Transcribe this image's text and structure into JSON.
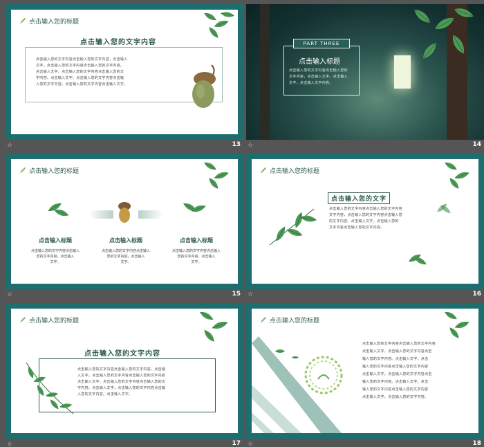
{
  "slides": [
    {
      "number": "13",
      "header": "点击输入您的标题",
      "title": "点击输入您的文字内容",
      "lines": [
        "点击输入您的文字内容点击输入您的文字内容，点击输入",
        "文字。点击输入您的文字内容点击输入您的文字内容。",
        "点击输入文字。点击输入您的文字内容点击输入您的文",
        "字内容。点击输入文字。点击输入您的文字内容点击输",
        "入您的文字内容。点击输入您的文字内容点击输入文字。"
      ]
    },
    {
      "number": "14",
      "part": "PART THREE",
      "title": "点击输入标题",
      "lines": [
        "点击输入您的文字内容点击输入您的",
        "文字内容，点击输入文字。点击输入",
        "文字。点击输入文字内容。"
      ]
    },
    {
      "number": "15",
      "header": "点击输入您的标题",
      "columns": [
        {
          "title": "点击输入标题",
          "lines": [
            "点击输入您的文字内容点击输入",
            "您的文字内容，点击输入",
            "文字。"
          ]
        },
        {
          "title": "点击输入标题",
          "lines": [
            "点击输入您的文字内容点击输入",
            "您的文字内容，点击输入",
            "文字。"
          ]
        },
        {
          "title": "点击输入标题",
          "lines": [
            "点击输入您的文字内容点击输入",
            "您的文字内容，点击输入",
            "文字。"
          ]
        }
      ]
    },
    {
      "number": "16",
      "header": "点击输入您的标题",
      "title": "点击输入您的文字",
      "lines": [
        "点击输入您的文字内容点击输入您的文字内容",
        "文字内容，点击输入您的文字内容点击输入您",
        "的文字内容。点击输入文字。点击输入您的",
        "文字内容点击输入您的文字内容。"
      ]
    },
    {
      "number": "17",
      "header": "点击输入您的标题",
      "title": "点击输入您的文字内容",
      "lines": [
        "点击输入您的文字内容点击输入您的文字内容，点击输",
        "入文字。点击输入您的文字内容点击输入您的文字内容",
        "点击输入文字。点击输入您的文字内容点击输入您的文",
        "字内容。点击输入文字。点击输入您的文字内容点击输",
        "入您的文字内容。点击输入文字。"
      ]
    },
    {
      "number": "18",
      "header": "点击输入您的标题",
      "lines": [
        "点击输入您的文字内容点击输入您的文字内容",
        "点击输入文字。点击输入您的文字内容点击",
        "输入您的文字内容。点击输入文字。点击",
        "输入您的文字内容点击输入您的文字内容",
        "点击输入文字。点击输入您的文字内容点击",
        "输入您的文字内容。点击输入文字。点击",
        "输入您的文字内容点击输入您的文字内容",
        "点击输入文字。点击输入您的文字内容。"
      ]
    }
  ],
  "icons": {
    "slide_marker": "star-icon",
    "leaf": "leaf-icon",
    "acorn": "acorn-icon",
    "arrow": "arrow-icon"
  },
  "colors": {
    "frame": "#1f6e6f",
    "title": "#2f5b4f",
    "leaf": "#4d9a56",
    "background": "#555555"
  }
}
